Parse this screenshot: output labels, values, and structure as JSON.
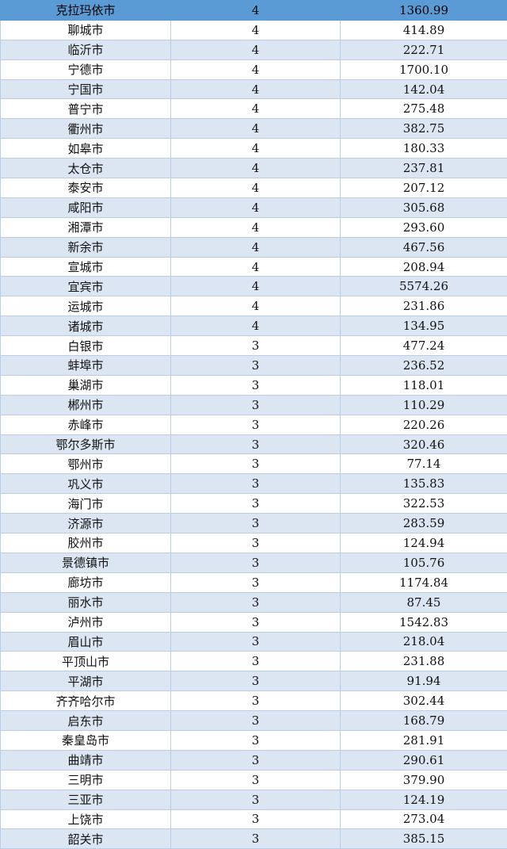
{
  "rows": [
    {
      "city": "克拉玛依市",
      "level": "4",
      "value": "1360.99"
    },
    {
      "city": "聊城市",
      "level": "4",
      "value": "414.89"
    },
    {
      "city": "临沂市",
      "level": "4",
      "value": "222.71"
    },
    {
      "city": "宁德市",
      "level": "4",
      "value": "1700.10"
    },
    {
      "city": "宁国市",
      "level": "4",
      "value": "142.04"
    },
    {
      "city": "普宁市",
      "level": "4",
      "value": "275.48"
    },
    {
      "city": "衢州市",
      "level": "4",
      "value": "382.75"
    },
    {
      "city": "如皋市",
      "level": "4",
      "value": "180.33"
    },
    {
      "city": "太仓市",
      "level": "4",
      "value": "237.81"
    },
    {
      "city": "泰安市",
      "level": "4",
      "value": "207.12"
    },
    {
      "city": "咸阳市",
      "level": "4",
      "value": "305.68"
    },
    {
      "city": "湘潭市",
      "level": "4",
      "value": "293.60"
    },
    {
      "city": "新余市",
      "level": "4",
      "value": "467.56"
    },
    {
      "city": "宣城市",
      "level": "4",
      "value": "208.94"
    },
    {
      "city": "宜宾市",
      "level": "4",
      "value": "5574.26"
    },
    {
      "city": "运城市",
      "level": "4",
      "value": "231.86"
    },
    {
      "city": "诸城市",
      "level": "4",
      "value": "134.95"
    },
    {
      "city": "白银市",
      "level": "3",
      "value": "477.24"
    },
    {
      "city": "蚌埠市",
      "level": "3",
      "value": "236.52"
    },
    {
      "city": "巢湖市",
      "level": "3",
      "value": "118.01"
    },
    {
      "city": "郴州市",
      "level": "3",
      "value": "110.29"
    },
    {
      "city": "赤峰市",
      "level": "3",
      "value": "220.26"
    },
    {
      "city": "鄂尔多斯市",
      "level": "3",
      "value": "320.46"
    },
    {
      "city": "鄂州市",
      "level": "3",
      "value": "77.14"
    },
    {
      "city": "巩义市",
      "level": "3",
      "value": "135.83"
    },
    {
      "city": "海门市",
      "level": "3",
      "value": "322.53"
    },
    {
      "city": "济源市",
      "level": "3",
      "value": "283.59"
    },
    {
      "city": "胶州市",
      "level": "3",
      "value": "124.94"
    },
    {
      "city": "景德镇市",
      "level": "3",
      "value": "105.76"
    },
    {
      "city": "廊坊市",
      "level": "3",
      "value": "1174.84"
    },
    {
      "city": "丽水市",
      "level": "3",
      "value": "87.45"
    },
    {
      "city": "泸州市",
      "level": "3",
      "value": "1542.83"
    },
    {
      "city": "眉山市",
      "level": "3",
      "value": "218.04"
    },
    {
      "city": "平顶山市",
      "level": "3",
      "value": "231.88"
    },
    {
      "city": "平湖市",
      "level": "3",
      "value": "91.94"
    },
    {
      "city": "齐齐哈尔市",
      "level": "3",
      "value": "302.44"
    },
    {
      "city": "启东市",
      "level": "3",
      "value": "168.79"
    },
    {
      "city": "秦皇岛市",
      "level": "3",
      "value": "281.91"
    },
    {
      "city": "曲靖市",
      "level": "3",
      "value": "290.61"
    },
    {
      "city": "三明市",
      "level": "3",
      "value": "379.90"
    },
    {
      "city": "三亚市",
      "level": "3",
      "value": "124.19"
    },
    {
      "city": "上饶市",
      "level": "3",
      "value": "273.04"
    },
    {
      "city": "韶关市",
      "level": "3",
      "value": "385.15"
    }
  ],
  "colors": {
    "highlight": "#5b9bd5",
    "band": "#dce6f2",
    "border": "#b9cde5"
  }
}
